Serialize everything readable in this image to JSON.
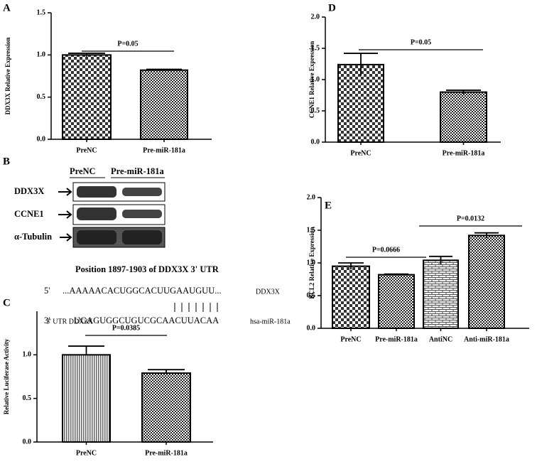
{
  "chart_data": [
    {
      "type": "bar",
      "panel": "A",
      "ylabel": "DDX3X Relative Expression",
      "categories": [
        "PreNC",
        "Pre-miR-181a"
      ],
      "values": [
        1.0,
        0.82
      ],
      "errors": [
        0.02,
        0.01
      ],
      "ylim": [
        0,
        1.5
      ],
      "yticks": [
        {
          "value": 0,
          "label": "0.0"
        },
        0.5,
        {
          "value": 1,
          "label": "1.0"
        },
        1.5
      ],
      "annotations": [
        "P=0.05"
      ]
    },
    {
      "type": "bar",
      "panel": "D",
      "ylabel": "CCNE1 Relative Expression",
      "categories": [
        "PreNC",
        "Pre-miR-181a"
      ],
      "values": [
        1.24,
        0.8
      ],
      "errors": [
        0.18,
        0.03
      ],
      "ylim": [
        0,
        2
      ],
      "yticks": [
        {
          "value": 0,
          "label": "0.0"
        },
        0.5,
        {
          "value": 1,
          "label": "1.0"
        },
        1.5,
        {
          "value": 2,
          "label": "2.0"
        }
      ],
      "annotations": [
        "P=0.05"
      ]
    },
    {
      "type": "bar",
      "panel": "C",
      "subtitle": "3' UTR DDX3X",
      "ylabel": "Relative Luciferase Activity",
      "categories": [
        "PreNC",
        "Pre-miR-181a"
      ],
      "values": [
        1.0,
        0.79
      ],
      "errors": [
        0.1,
        0.04
      ],
      "ylim": [
        0,
        1.5
      ],
      "yticks": [
        {
          "value": 0,
          "label": "0.0"
        },
        0.5,
        {
          "value": 1,
          "label": "1.0"
        }
      ],
      "annotations": [
        "P=0.0385"
      ]
    },
    {
      "type": "bar",
      "panel": "E",
      "ylabel": "BCL2 Relative Expression",
      "categories": [
        "PreNC",
        "Pre-miR-181a",
        "AntiNC",
        "Anti-miR-181a"
      ],
      "values": [
        0.95,
        0.82,
        1.04,
        1.42
      ],
      "errors": [
        0.05,
        0.01,
        0.06,
        0.04
      ],
      "ylim": [
        0,
        2
      ],
      "yticks": [
        {
          "value": 0,
          "label": "0.0"
        },
        0.5,
        {
          "value": 1,
          "label": "1.0"
        },
        1.5,
        {
          "value": 2,
          "label": "2.0"
        }
      ],
      "annotations": [
        "P=0.0666",
        "P=0.0132"
      ]
    }
  ],
  "panel_b": {
    "panel": "B",
    "lanes": [
      "PreNC",
      "Pre-miR-181a"
    ],
    "proteins": [
      "DDX3X",
      "CCNE1",
      "α-Tubulin"
    ],
    "site": "Position 1897-1903 of DDX3X 3' UTR",
    "pairing": [
      {
        "end": "5'",
        "sequence": "...AAAAACACUGGCACUUGAAUGUU...",
        "name": "DDX3X"
      },
      {
        "end": "3'",
        "sequence": "UGAGUGGCUGUCGCAACUUACAA",
        "name": "hsa-miR-181a"
      }
    ]
  }
}
